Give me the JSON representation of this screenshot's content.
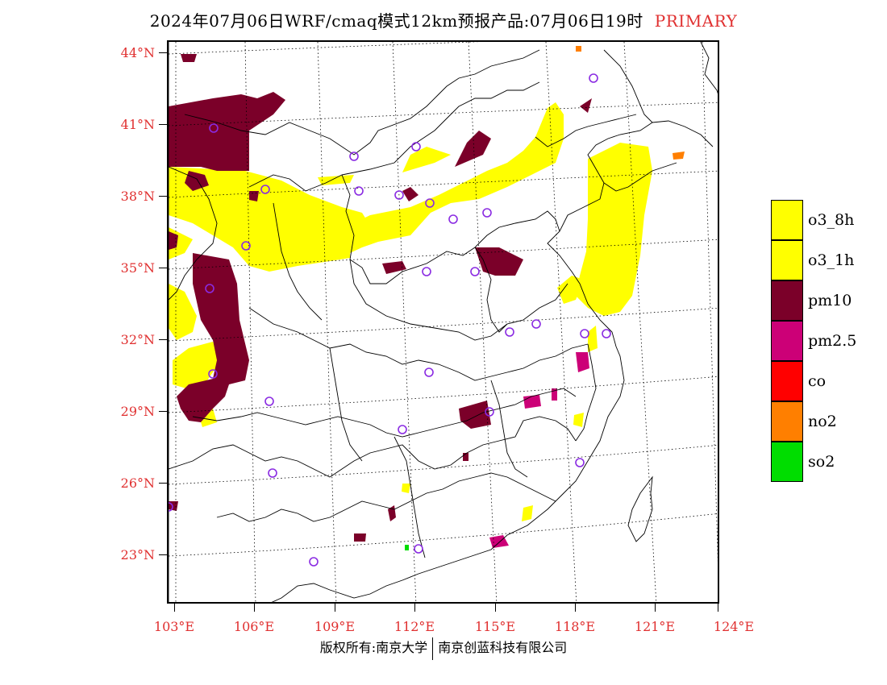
{
  "title": {
    "main": "2024年07月06日WRF/cmaq模式12km预报产品:07月06日19时",
    "tag": "PRIMARY"
  },
  "axes": {
    "latitude_labels": [
      "44°N",
      "41°N",
      "38°N",
      "35°N",
      "32°N",
      "29°N",
      "26°N",
      "23°N"
    ],
    "longitude_labels": [
      "103°E",
      "106°E",
      "109°E",
      "112°E",
      "115°E",
      "118°E",
      "121°E",
      "124°E"
    ],
    "label_color": "#e03030"
  },
  "legend": [
    {
      "label": "o3_8h",
      "color": "#ffff00"
    },
    {
      "label": "o3_1h",
      "color": "#ffff00"
    },
    {
      "label": "pm10",
      "color": "#7b0029"
    },
    {
      "label": "pm2.5",
      "color": "#cc0077"
    },
    {
      "label": "co",
      "color": "#ff0000"
    },
    {
      "label": "no2",
      "color": "#ff7f00"
    },
    {
      "label": "so2",
      "color": "#00dd00"
    }
  ],
  "station_marker_color": "#8a2be2",
  "footer": {
    "left": "版权所有:南京大学",
    "right": "南京创蓝科技有限公司"
  }
}
